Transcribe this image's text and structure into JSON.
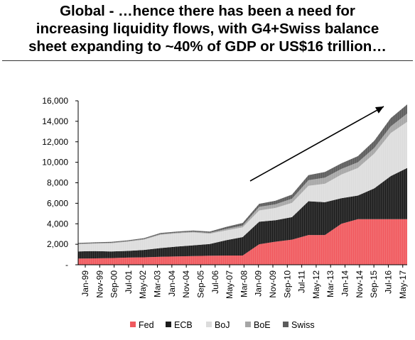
{
  "title_lines": [
    "Global - …hence there has been a need for",
    "increasing liquidity flows, with G4+Swiss balance",
    "sheet expanding to ~40% of GDP or US$16 trillion…"
  ],
  "colors": {
    "Fed": "#f0595e",
    "ECB": "#1c1c1c",
    "BoJ": "#dcdcdc",
    "BoE": "#a6a6a6",
    "Swiss": "#5c5c5c"
  },
  "chart_data": {
    "type": "area",
    "stacked": true,
    "ylim": [
      0,
      16000
    ],
    "yticks": [
      0,
      2000,
      4000,
      6000,
      8000,
      10000,
      12000,
      14000,
      16000
    ],
    "ytick_labels": [
      "-",
      "2,000",
      "4,000",
      "6,000",
      "8,000",
      "10,000",
      "12,000",
      "14,000",
      "16,000"
    ],
    "xtick_labels": [
      "Jan-99",
      "Nov-99",
      "Sep-00",
      "Jul-01",
      "May-02",
      "Mar-03",
      "Jan-04",
      "Nov-04",
      "Sep-05",
      "Jul-06",
      "May-07",
      "Mar-08",
      "Jan-09",
      "Nov-09",
      "Sep-10",
      "Jul-11",
      "May-12",
      "Mar-13",
      "Jan-14",
      "Nov-14",
      "Sep-15",
      "Jul-16",
      "May-17"
    ],
    "x": [
      "Jan-99",
      "Jan-00",
      "Jan-01",
      "Jan-02",
      "Jan-03",
      "Jan-04",
      "Jan-05",
      "Jan-06",
      "Jan-07",
      "Jan-08",
      "Aug-08",
      "Jan-09",
      "Jan-10",
      "Jan-11",
      "Jan-12",
      "Jan-13",
      "Jan-14",
      "Jan-15",
      "Jan-16",
      "Jan-17",
      "Dec-17"
    ],
    "series": [
      {
        "name": "Fed",
        "values": [
          600,
          620,
          650,
          700,
          730,
          780,
          820,
          850,
          880,
          900,
          900,
          2000,
          2250,
          2450,
          2900,
          2900,
          4000,
          4450,
          4450,
          4450,
          4450
        ]
      },
      {
        "name": "ECB",
        "values": [
          700,
          720,
          650,
          650,
          720,
          850,
          950,
          1050,
          1150,
          1500,
          1800,
          2200,
          2100,
          2200,
          3300,
          3200,
          2500,
          2300,
          3000,
          4200,
          5000
        ]
      },
      {
        "name": "BoJ",
        "values": [
          700,
          720,
          800,
          900,
          1000,
          1300,
          1300,
          1250,
          1000,
          950,
          950,
          1100,
          1200,
          1400,
          1500,
          1800,
          2300,
          2700,
          3400,
          4200,
          4500
        ]
      },
      {
        "name": "BoE",
        "values": [
          50,
          50,
          50,
          50,
          60,
          70,
          70,
          80,
          90,
          150,
          180,
          350,
          350,
          400,
          550,
          600,
          550,
          550,
          550,
          650,
          800
        ]
      },
      {
        "name": "Swiss",
        "values": [
          80,
          80,
          80,
          80,
          90,
          100,
          100,
          110,
          120,
          200,
          250,
          300,
          350,
          400,
          500,
          550,
          550,
          600,
          700,
          800,
          900
        ]
      }
    ],
    "legend_position": "bottom",
    "annotation": "upward arrow from Jan-09 to Jul-16"
  }
}
